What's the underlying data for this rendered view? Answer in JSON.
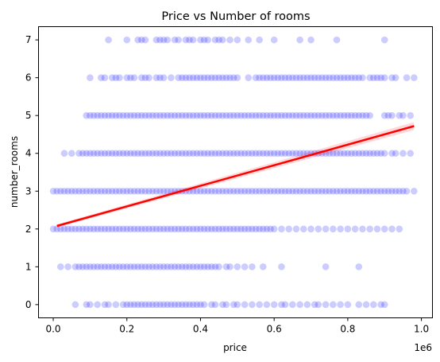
{
  "chart_data": {
    "type": "scatter",
    "title": "Price vs Number of rooms",
    "xlabel": "price",
    "ylabel": "number_rooms",
    "x_offset_label": "1e6",
    "xlim": [
      -0.04,
      1.03
    ],
    "ylim": [
      -0.35,
      7.35
    ],
    "x_ticks": [
      0.0,
      0.2,
      0.4,
      0.6,
      0.8,
      1.0
    ],
    "x_tick_labels": [
      "0.0",
      "0.2",
      "0.4",
      "0.6",
      "0.8",
      "1.0"
    ],
    "y_ticks": [
      0,
      1,
      2,
      3,
      4,
      5,
      6,
      7
    ],
    "y_tick_labels": [
      "0",
      "1",
      "2",
      "3",
      "4",
      "5",
      "6",
      "7"
    ],
    "grid": false,
    "point_color": "#0000ff",
    "line_color": "#ff0000",
    "series": [
      {
        "y": 0,
        "x": [
          0.06,
          0.09,
          0.1,
          0.12,
          0.14,
          0.15,
          0.17,
          0.19,
          0.2,
          0.21,
          0.22,
          0.23,
          0.24,
          0.25,
          0.26,
          0.27,
          0.28,
          0.29,
          0.3,
          0.31,
          0.32,
          0.33,
          0.34,
          0.35,
          0.36,
          0.37,
          0.38,
          0.39,
          0.4,
          0.41,
          0.43,
          0.44,
          0.46,
          0.47,
          0.49,
          0.5,
          0.52,
          0.54,
          0.56,
          0.58,
          0.6,
          0.62,
          0.63,
          0.65,
          0.67,
          0.69,
          0.71,
          0.72,
          0.74,
          0.76,
          0.78,
          0.8,
          0.83,
          0.85,
          0.87,
          0.89,
          0.9
        ]
      },
      {
        "y": 1,
        "x": [
          0.02,
          0.04,
          0.06,
          0.07,
          0.08,
          0.09,
          0.1,
          0.11,
          0.12,
          0.13,
          0.14,
          0.15,
          0.16,
          0.17,
          0.18,
          0.19,
          0.2,
          0.21,
          0.22,
          0.23,
          0.24,
          0.25,
          0.26,
          0.27,
          0.28,
          0.29,
          0.3,
          0.31,
          0.32,
          0.33,
          0.34,
          0.35,
          0.36,
          0.37,
          0.38,
          0.39,
          0.4,
          0.41,
          0.42,
          0.43,
          0.44,
          0.45,
          0.47,
          0.48,
          0.5,
          0.52,
          0.54,
          0.57,
          0.62,
          0.74,
          0.83
        ]
      },
      {
        "y": 2,
        "x": [
          0.0,
          0.01,
          0.02,
          0.03,
          0.04,
          0.05,
          0.06,
          0.07,
          0.08,
          0.09,
          0.1,
          0.11,
          0.12,
          0.13,
          0.14,
          0.15,
          0.16,
          0.17,
          0.18,
          0.19,
          0.2,
          0.21,
          0.22,
          0.23,
          0.24,
          0.25,
          0.26,
          0.27,
          0.28,
          0.29,
          0.3,
          0.31,
          0.32,
          0.33,
          0.34,
          0.35,
          0.36,
          0.37,
          0.38,
          0.39,
          0.4,
          0.41,
          0.42,
          0.43,
          0.44,
          0.45,
          0.46,
          0.47,
          0.48,
          0.49,
          0.5,
          0.51,
          0.52,
          0.53,
          0.54,
          0.55,
          0.56,
          0.57,
          0.58,
          0.59,
          0.6,
          0.62,
          0.64,
          0.66,
          0.68,
          0.7,
          0.72,
          0.74,
          0.76,
          0.78,
          0.8,
          0.82,
          0.84,
          0.86,
          0.88,
          0.9,
          0.92,
          0.94
        ]
      },
      {
        "y": 3,
        "x": [
          0.0,
          0.01,
          0.02,
          0.03,
          0.04,
          0.05,
          0.06,
          0.07,
          0.08,
          0.09,
          0.1,
          0.11,
          0.12,
          0.13,
          0.14,
          0.15,
          0.16,
          0.17,
          0.18,
          0.19,
          0.2,
          0.21,
          0.22,
          0.23,
          0.24,
          0.25,
          0.26,
          0.27,
          0.28,
          0.29,
          0.3,
          0.31,
          0.32,
          0.33,
          0.34,
          0.35,
          0.36,
          0.37,
          0.38,
          0.39,
          0.4,
          0.41,
          0.42,
          0.43,
          0.44,
          0.45,
          0.46,
          0.47,
          0.48,
          0.49,
          0.5,
          0.51,
          0.52,
          0.53,
          0.54,
          0.55,
          0.56,
          0.57,
          0.58,
          0.59,
          0.6,
          0.61,
          0.62,
          0.63,
          0.64,
          0.65,
          0.66,
          0.67,
          0.68,
          0.69,
          0.7,
          0.71,
          0.72,
          0.73,
          0.74,
          0.75,
          0.76,
          0.77,
          0.78,
          0.79,
          0.8,
          0.81,
          0.82,
          0.83,
          0.84,
          0.85,
          0.86,
          0.87,
          0.88,
          0.89,
          0.9,
          0.91,
          0.92,
          0.93,
          0.94,
          0.95,
          0.96,
          0.98
        ]
      },
      {
        "y": 4,
        "x": [
          0.03,
          0.05,
          0.07,
          0.08,
          0.09,
          0.1,
          0.11,
          0.12,
          0.13,
          0.14,
          0.15,
          0.16,
          0.17,
          0.18,
          0.19,
          0.2,
          0.21,
          0.22,
          0.23,
          0.24,
          0.25,
          0.26,
          0.27,
          0.28,
          0.29,
          0.3,
          0.31,
          0.32,
          0.33,
          0.34,
          0.35,
          0.36,
          0.37,
          0.38,
          0.39,
          0.4,
          0.41,
          0.42,
          0.43,
          0.44,
          0.45,
          0.46,
          0.47,
          0.48,
          0.49,
          0.5,
          0.51,
          0.52,
          0.53,
          0.54,
          0.55,
          0.56,
          0.57,
          0.58,
          0.59,
          0.6,
          0.61,
          0.62,
          0.63,
          0.64,
          0.65,
          0.66,
          0.67,
          0.68,
          0.69,
          0.7,
          0.71,
          0.72,
          0.73,
          0.74,
          0.75,
          0.76,
          0.77,
          0.78,
          0.79,
          0.8,
          0.81,
          0.82,
          0.83,
          0.84,
          0.85,
          0.86,
          0.87,
          0.88,
          0.89,
          0.9,
          0.92,
          0.93,
          0.95,
          0.97
        ]
      },
      {
        "y": 5,
        "x": [
          0.09,
          0.1,
          0.11,
          0.12,
          0.13,
          0.14,
          0.15,
          0.16,
          0.17,
          0.18,
          0.19,
          0.2,
          0.21,
          0.22,
          0.23,
          0.24,
          0.25,
          0.26,
          0.27,
          0.28,
          0.29,
          0.3,
          0.31,
          0.32,
          0.33,
          0.34,
          0.35,
          0.36,
          0.37,
          0.38,
          0.39,
          0.4,
          0.41,
          0.42,
          0.43,
          0.44,
          0.45,
          0.46,
          0.47,
          0.48,
          0.49,
          0.5,
          0.51,
          0.52,
          0.53,
          0.54,
          0.55,
          0.56,
          0.57,
          0.58,
          0.59,
          0.6,
          0.61,
          0.62,
          0.63,
          0.64,
          0.65,
          0.66,
          0.67,
          0.68,
          0.69,
          0.7,
          0.71,
          0.72,
          0.73,
          0.74,
          0.75,
          0.76,
          0.77,
          0.78,
          0.79,
          0.8,
          0.81,
          0.82,
          0.83,
          0.84,
          0.85,
          0.86,
          0.9,
          0.91,
          0.92,
          0.94,
          0.95,
          0.97
        ]
      },
      {
        "y": 6,
        "x": [
          0.1,
          0.13,
          0.14,
          0.16,
          0.17,
          0.18,
          0.2,
          0.21,
          0.22,
          0.24,
          0.25,
          0.26,
          0.28,
          0.29,
          0.3,
          0.32,
          0.34,
          0.35,
          0.36,
          0.37,
          0.38,
          0.39,
          0.4,
          0.41,
          0.42,
          0.43,
          0.44,
          0.45,
          0.46,
          0.47,
          0.48,
          0.49,
          0.5,
          0.53,
          0.55,
          0.56,
          0.57,
          0.58,
          0.59,
          0.6,
          0.61,
          0.62,
          0.63,
          0.64,
          0.65,
          0.66,
          0.67,
          0.68,
          0.69,
          0.7,
          0.71,
          0.72,
          0.73,
          0.74,
          0.75,
          0.76,
          0.77,
          0.78,
          0.79,
          0.8,
          0.81,
          0.82,
          0.83,
          0.84,
          0.86,
          0.87,
          0.88,
          0.89,
          0.9,
          0.92,
          0.93,
          0.96,
          0.98
        ]
      },
      {
        "y": 7,
        "x": [
          0.15,
          0.2,
          0.23,
          0.24,
          0.25,
          0.28,
          0.29,
          0.3,
          0.31,
          0.33,
          0.34,
          0.36,
          0.37,
          0.38,
          0.4,
          0.41,
          0.42,
          0.44,
          0.45,
          0.46,
          0.48,
          0.5,
          0.53,
          0.56,
          0.6,
          0.67,
          0.7,
          0.77,
          0.9
        ]
      }
    ],
    "regression_line": {
      "x": [
        0.01,
        0.98
      ],
      "y": [
        2.08,
        4.72
      ]
    }
  }
}
